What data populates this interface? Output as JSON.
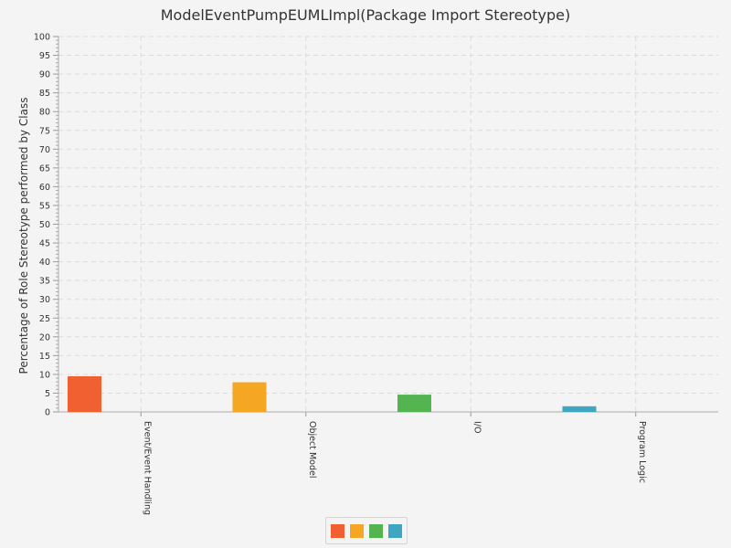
{
  "chart_data": {
    "type": "bar",
    "title": "ModelEventPumpEUMLImpl(Package Import Stereotype)",
    "ylabel": "Percentage of Role Stereotype performed by Class",
    "xlabel": "",
    "ylim": [
      0,
      100
    ],
    "ytick_step": 5,
    "yticks": [
      "0",
      "5",
      "10",
      "15",
      "20",
      "25",
      "30",
      "35",
      "40",
      "45",
      "50",
      "55",
      "60",
      "65",
      "70",
      "75",
      "80",
      "85",
      "90",
      "95",
      "100"
    ],
    "grid": true,
    "legend_position": "bottom-center",
    "categories": [
      "Event/Event Handling",
      "Object Model",
      "I/O",
      "Program Logic"
    ],
    "series": [
      {
        "color": "#f06030",
        "values": [
          9.5,
          0,
          0,
          0
        ]
      },
      {
        "color": "#f5a623",
        "values": [
          0,
          7.9,
          0,
          0
        ]
      },
      {
        "color": "#54b450",
        "values": [
          0,
          0,
          4.6,
          0
        ]
      },
      {
        "color": "#3ea6c0",
        "values": [
          0,
          0,
          0,
          1.5
        ]
      }
    ]
  }
}
